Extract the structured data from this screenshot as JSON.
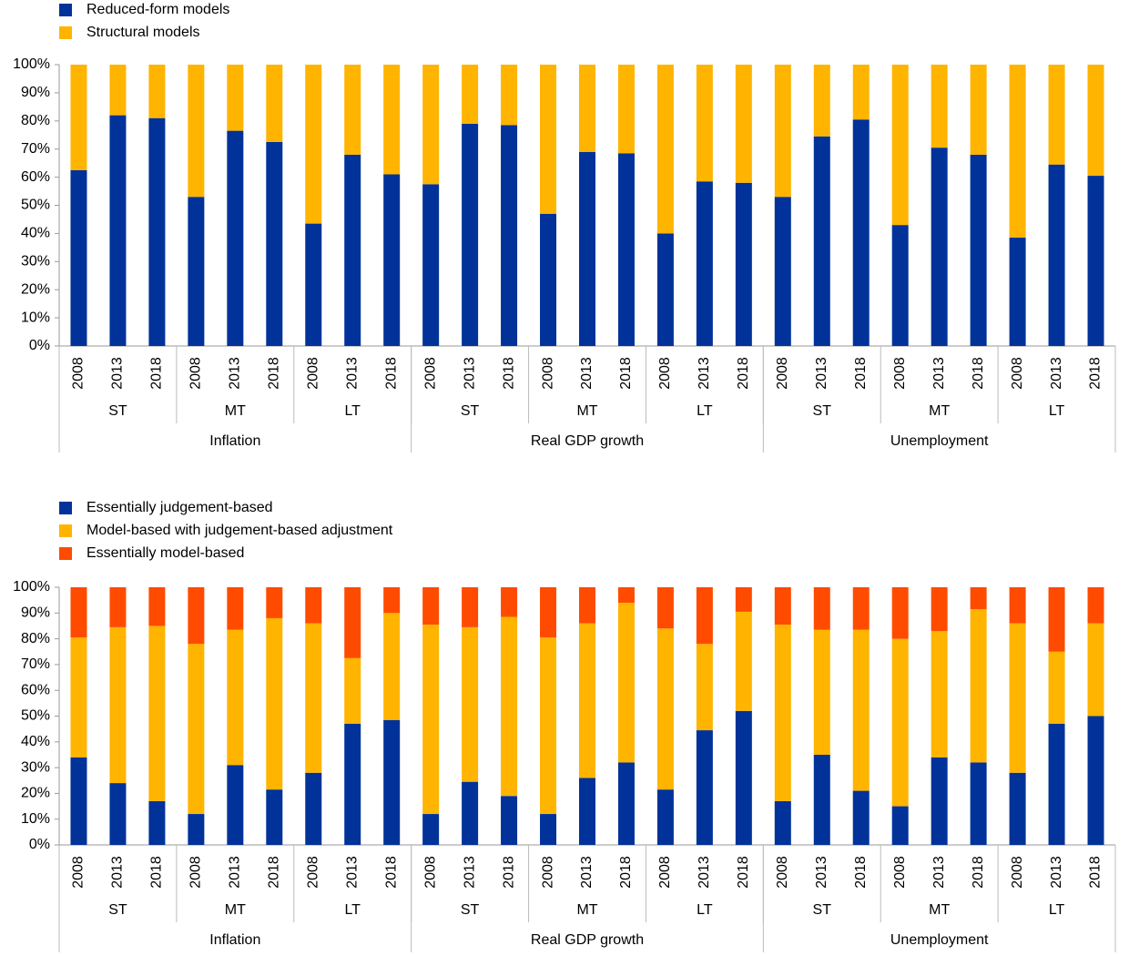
{
  "chart_data": [
    {
      "type": "bar",
      "stacked": true,
      "categories": [
        "2008",
        "2013",
        "2018",
        "2008",
        "2013",
        "2018",
        "2008",
        "2013",
        "2018",
        "2008",
        "2013",
        "2018",
        "2008",
        "2013",
        "2018",
        "2008",
        "2013",
        "2018",
        "2008",
        "2013",
        "2018",
        "2008",
        "2013",
        "2018",
        "2008",
        "2013",
        "2018"
      ],
      "groups": [
        [
          "ST",
          "MT",
          "LT",
          "ST",
          "MT",
          "LT",
          "ST",
          "MT",
          "LT"
        ],
        [
          "Inflation",
          "Real GDP growth",
          "Unemployment"
        ]
      ],
      "series": [
        {
          "name": "Reduced-form models",
          "color": "#003299",
          "values": [
            62.5,
            82,
            81,
            53,
            76.5,
            72.5,
            43.5,
            68,
            61,
            57.5,
            79,
            78.5,
            47,
            69,
            68.5,
            40,
            58.5,
            58,
            53,
            74.5,
            80.5,
            43,
            70.5,
            68,
            38.5,
            64.5,
            60.5
          ]
        },
        {
          "name": "Structural models",
          "color": "#ffb400",
          "values": [
            37.5,
            18,
            19,
            47,
            23.5,
            27.5,
            56.5,
            32,
            39,
            42.5,
            21,
            21.5,
            53,
            31,
            31.5,
            60,
            41.5,
            42,
            47,
            25.5,
            19.5,
            57,
            29.5,
            32,
            61.5,
            35.5,
            39.5
          ]
        }
      ],
      "ylim": [
        0,
        100
      ],
      "yticks": [
        {
          "value": 0,
          "label": "0%"
        },
        {
          "value": 10,
          "label": "10%"
        },
        {
          "value": 20,
          "label": "20%"
        },
        {
          "value": 30,
          "label": "30%"
        },
        {
          "value": 40,
          "label": "40%"
        },
        {
          "value": 50,
          "label": "50%"
        },
        {
          "value": 60,
          "label": "60%"
        },
        {
          "value": 70,
          "label": "70%"
        },
        {
          "value": 80,
          "label": "80%"
        },
        {
          "value": 90,
          "label": "90%"
        },
        {
          "value": 100,
          "label": "100%"
        }
      ],
      "legend": "top-left"
    },
    {
      "type": "bar",
      "stacked": true,
      "categories": [
        "2008",
        "2013",
        "2018",
        "2008",
        "2013",
        "2018",
        "2008",
        "2013",
        "2018",
        "2008",
        "2013",
        "2018",
        "2008",
        "2013",
        "2018",
        "2008",
        "2013",
        "2018",
        "2008",
        "2013",
        "2018",
        "2008",
        "2013",
        "2018",
        "2008",
        "2013",
        "2018"
      ],
      "groups": [
        [
          "ST",
          "MT",
          "LT",
          "ST",
          "MT",
          "LT",
          "ST",
          "MT",
          "LT"
        ],
        [
          "Inflation",
          "Real GDP growth",
          "Unemployment"
        ]
      ],
      "series": [
        {
          "name": "Essentially judgement-based",
          "color": "#003299",
          "values": [
            34,
            24,
            17,
            12,
            31,
            21.5,
            28,
            47,
            48.5,
            12,
            24.5,
            19,
            12,
            26,
            32,
            21.5,
            44.5,
            52,
            17,
            35,
            21,
            15,
            34,
            32,
            28,
            47,
            50
          ]
        },
        {
          "name": "Model-based with judgement-based adjustment",
          "color": "#ffb400",
          "values": [
            46.5,
            60.5,
            68,
            66,
            52.5,
            66.5,
            58,
            25.5,
            41.5,
            73.5,
            60,
            69.5,
            68.5,
            60,
            62,
            62.5,
            33.5,
            38.5,
            68.5,
            48.5,
            62.5,
            65,
            49,
            59.5,
            58,
            28,
            36
          ]
        },
        {
          "name": "Essentially model-based",
          "color": "#ff4b00",
          "values": [
            19.5,
            15.5,
            15,
            22,
            16.5,
            12,
            14,
            27.5,
            10,
            14.5,
            15.5,
            11.5,
            19.5,
            14,
            6,
            16,
            22,
            9.5,
            14.5,
            16.5,
            16.5,
            20,
            17,
            8.5,
            14,
            25,
            14
          ]
        }
      ],
      "ylim": [
        0,
        100
      ],
      "yticks": [
        {
          "value": 0,
          "label": "0%"
        },
        {
          "value": 10,
          "label": "10%"
        },
        {
          "value": 20,
          "label": "20%"
        },
        {
          "value": 30,
          "label": "30%"
        },
        {
          "value": 40,
          "label": "40%"
        },
        {
          "value": 50,
          "label": "50%"
        },
        {
          "value": 60,
          "label": "60%"
        },
        {
          "value": 70,
          "label": "70%"
        },
        {
          "value": 80,
          "label": "80%"
        },
        {
          "value": 90,
          "label": "90%"
        },
        {
          "value": 100,
          "label": "100%"
        }
      ],
      "legend": "top-left"
    }
  ]
}
